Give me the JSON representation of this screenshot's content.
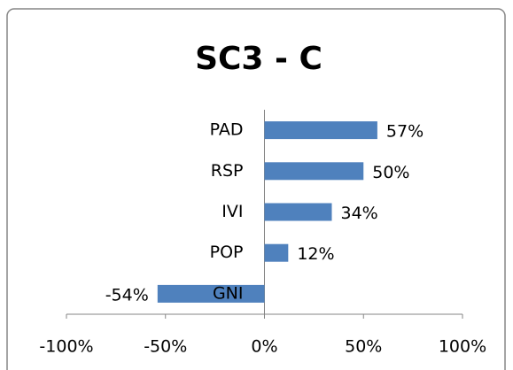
{
  "chart_data": {
    "type": "hbar",
    "title": "SC3 - C",
    "categories": [
      "PAD",
      "RSP",
      "IVI",
      "POP",
      "GNI"
    ],
    "values": [
      57,
      50,
      34,
      12,
      -54
    ],
    "value_labels": [
      "57%",
      "50%",
      "34%",
      "12%",
      "-54%"
    ],
    "color": "#4f81bd",
    "xlim": [
      -100,
      100
    ],
    "xticks": [
      {
        "value": -100,
        "label": "-100%"
      },
      {
        "value": -50,
        "label": "-50%"
      },
      {
        "value": 0,
        "label": "0%"
      },
      {
        "value": 50,
        "label": "50%"
      },
      {
        "value": 100,
        "label": "100%"
      }
    ],
    "grid": false
  }
}
